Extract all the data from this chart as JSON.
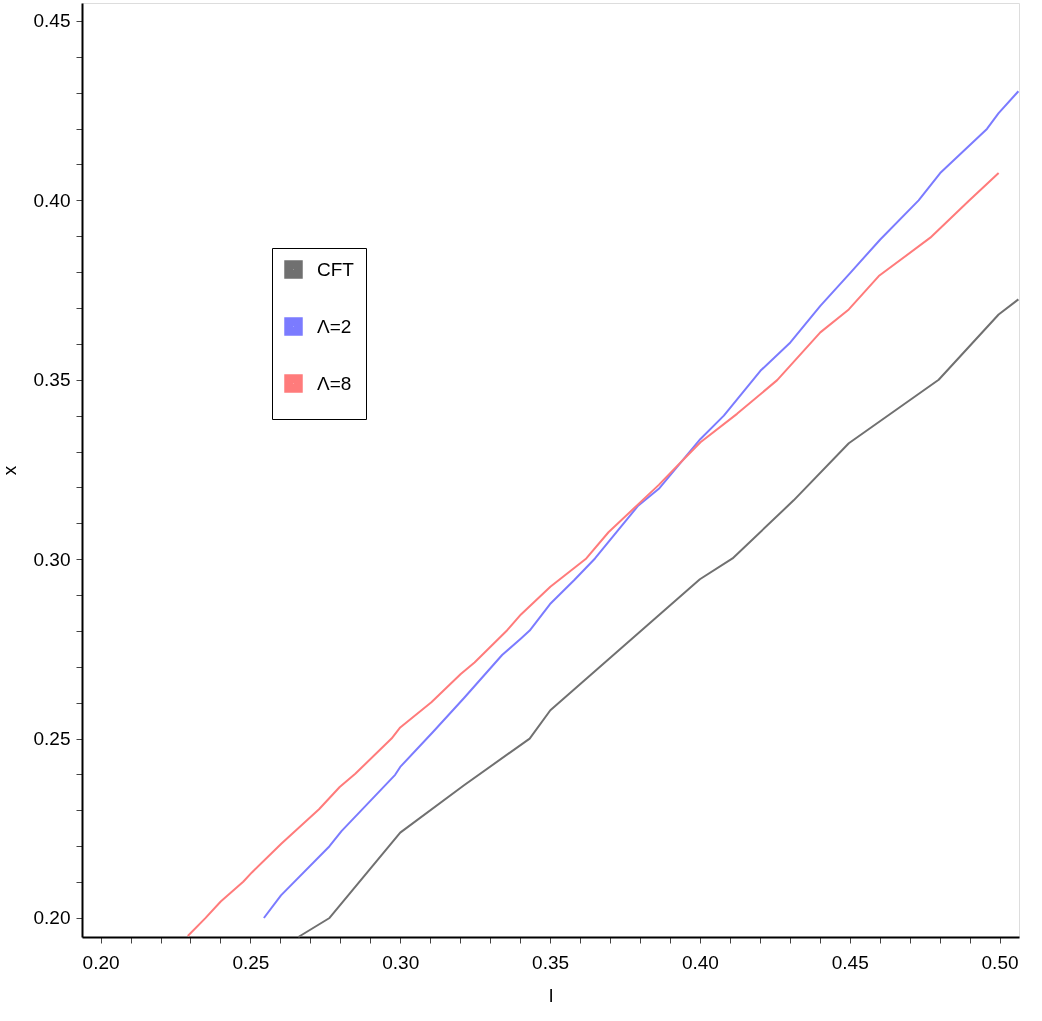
{
  "chart_data": {
    "type": "line",
    "xlabel": "l",
    "ylabel": "x",
    "xlim": [
      0.1938,
      0.5065
    ],
    "ylim": [
      0.1947,
      0.455
    ],
    "xticks": [
      {
        "value": 0.2,
        "label": "0.20"
      },
      {
        "value": 0.21,
        "label": null
      },
      {
        "value": 0.22,
        "label": null
      },
      {
        "value": 0.23,
        "label": null
      },
      {
        "value": 0.24,
        "label": null
      },
      {
        "value": 0.25,
        "label": "0.25"
      },
      {
        "value": 0.26,
        "label": null
      },
      {
        "value": 0.27,
        "label": null
      },
      {
        "value": 0.28,
        "label": null
      },
      {
        "value": 0.29,
        "label": null
      },
      {
        "value": 0.3,
        "label": "0.30"
      },
      {
        "value": 0.31,
        "label": null
      },
      {
        "value": 0.32,
        "label": null
      },
      {
        "value": 0.33,
        "label": null
      },
      {
        "value": 0.34,
        "label": null
      },
      {
        "value": 0.35,
        "label": "0.35"
      },
      {
        "value": 0.36,
        "label": null
      },
      {
        "value": 0.37,
        "label": null
      },
      {
        "value": 0.38,
        "label": null
      },
      {
        "value": 0.39,
        "label": null
      },
      {
        "value": 0.4,
        "label": "0.40"
      },
      {
        "value": 0.41,
        "label": null
      },
      {
        "value": 0.42,
        "label": null
      },
      {
        "value": 0.43,
        "label": null
      },
      {
        "value": 0.44,
        "label": null
      },
      {
        "value": 0.45,
        "label": "0.45"
      },
      {
        "value": 0.46,
        "label": null
      },
      {
        "value": 0.47,
        "label": null
      },
      {
        "value": 0.48,
        "label": null
      },
      {
        "value": 0.49,
        "label": null
      },
      {
        "value": 0.5,
        "label": "0.50"
      }
    ],
    "yticks": [
      {
        "value": 0.2,
        "label": "0.20"
      },
      {
        "value": 0.21,
        "label": null
      },
      {
        "value": 0.22,
        "label": null
      },
      {
        "value": 0.23,
        "label": null
      },
      {
        "value": 0.24,
        "label": null
      },
      {
        "value": 0.25,
        "label": "0.25"
      },
      {
        "value": 0.26,
        "label": null
      },
      {
        "value": 0.27,
        "label": null
      },
      {
        "value": 0.28,
        "label": null
      },
      {
        "value": 0.29,
        "label": null
      },
      {
        "value": 0.3,
        "label": "0.30"
      },
      {
        "value": 0.31,
        "label": null
      },
      {
        "value": 0.32,
        "label": null
      },
      {
        "value": 0.33,
        "label": null
      },
      {
        "value": 0.34,
        "label": null
      },
      {
        "value": 0.35,
        "label": "0.35"
      },
      {
        "value": 0.36,
        "label": null
      },
      {
        "value": 0.37,
        "label": null
      },
      {
        "value": 0.38,
        "label": null
      },
      {
        "value": 0.39,
        "label": null
      },
      {
        "value": 0.4,
        "label": "0.40"
      },
      {
        "value": 0.41,
        "label": null
      },
      {
        "value": 0.42,
        "label": null
      },
      {
        "value": 0.43,
        "label": null
      },
      {
        "value": 0.44,
        "label": null
      },
      {
        "value": 0.45,
        "label": "0.45"
      }
    ],
    "grid": false,
    "legend": "top left",
    "marker": "none",
    "line_style": "solid",
    "series": [
      {
        "name": "CFT",
        "color": "#707070",
        "x": [
          0.266,
          0.2764,
          0.3,
          0.3213,
          0.3432,
          0.3501,
          0.4,
          0.4109,
          0.4313,
          0.4497,
          0.4797,
          0.4997,
          0.5063
        ],
        "values": [
          0.1947,
          0.2,
          0.2238,
          0.237,
          0.25,
          0.2579,
          0.2944,
          0.3002,
          0.3164,
          0.3323,
          0.35,
          0.3682,
          0.3724
        ]
      },
      {
        "name": "Λ=2",
        "color": "#7b7bff",
        "x": [
          0.2545,
          0.2602,
          0.2764,
          0.2804,
          0.2983,
          0.3,
          0.311,
          0.3213,
          0.334,
          0.3403,
          0.3432,
          0.35,
          0.3581,
          0.365,
          0.3794,
          0.3863,
          0.4002,
          0.408,
          0.4202,
          0.4302,
          0.4402,
          0.4502,
          0.4602,
          0.473,
          0.4802,
          0.4958,
          0.4997,
          0.5063
        ],
        "values": [
          0.2,
          0.2063,
          0.22,
          0.2242,
          0.2399,
          0.2421,
          0.2519,
          0.2613,
          0.2733,
          0.2779,
          0.2801,
          0.2875,
          0.2942,
          0.3002,
          0.3149,
          0.3196,
          0.3335,
          0.34,
          0.3525,
          0.3604,
          0.3706,
          0.3798,
          0.3891,
          0.4,
          0.4076,
          0.4199,
          0.4243,
          0.4304
        ]
      },
      {
        "name": "Λ=8",
        "color": "#ff7b7b",
        "x": [
          0.2291,
          0.2349,
          0.2401,
          0.2476,
          0.2505,
          0.2603,
          0.2729,
          0.2798,
          0.285,
          0.2971,
          0.3,
          0.3104,
          0.3202,
          0.3248,
          0.3357,
          0.3403,
          0.3501,
          0.3621,
          0.3695,
          0.3863,
          0.3947,
          0.4002,
          0.4124,
          0.4258,
          0.4402,
          0.4497,
          0.4597,
          0.4769,
          0.4897,
          0.4997
        ],
        "values": [
          0.195,
          0.1999,
          0.2046,
          0.2101,
          0.2127,
          0.2207,
          0.2303,
          0.2365,
          0.2402,
          0.25,
          0.2531,
          0.2601,
          0.268,
          0.2712,
          0.2802,
          0.2846,
          0.2923,
          0.3002,
          0.3075,
          0.3207,
          0.3279,
          0.3326,
          0.3405,
          0.3499,
          0.3632,
          0.3696,
          0.3789,
          0.3896,
          0.3998,
          0.4076
        ]
      }
    ]
  }
}
